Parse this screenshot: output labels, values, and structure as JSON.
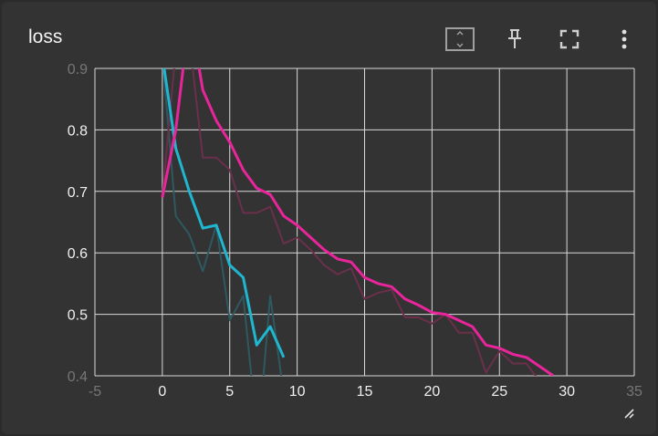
{
  "card": {
    "title": "loss",
    "icons": [
      "fit-domain-icon",
      "pin-icon",
      "fullscreen-icon",
      "more-vert-icon"
    ]
  },
  "chart_data": {
    "type": "line",
    "title": "loss",
    "xlabel": "",
    "ylabel": "",
    "xlim": [
      -5,
      35
    ],
    "ylim": [
      0.4,
      0.9
    ],
    "x_ticks": [
      -5,
      0,
      5,
      10,
      15,
      20,
      25,
      30,
      35
    ],
    "y_ticks": [
      0.4,
      0.5,
      0.6,
      0.7,
      0.8,
      0.9
    ],
    "grid": true,
    "colors": {
      "cyan": "#1fb6d0",
      "cyan_raw": "#2e5960",
      "magenta": "#e8259a",
      "magenta_raw": "#6b2f4c",
      "grid": "#d9d9d9",
      "background": "#333333"
    },
    "series": [
      {
        "color": "#1fb6d0",
        "raw_color": "#2e5960",
        "raw": [
          [
            0,
            0.92
          ],
          [
            1,
            0.66
          ],
          [
            2,
            0.63
          ],
          [
            3,
            0.57
          ],
          [
            4,
            0.645
          ],
          [
            5,
            0.49
          ],
          [
            6,
            0.53
          ],
          [
            6.6,
            0.4
          ],
          [
            7,
            0.36
          ],
          [
            7.5,
            0.4
          ],
          [
            8,
            0.53
          ],
          [
            9,
            0.37
          ]
        ],
        "smoothed": [
          [
            0,
            0.92
          ],
          [
            1,
            0.77
          ],
          [
            2,
            0.7
          ],
          [
            3,
            0.64
          ],
          [
            4,
            0.645
          ],
          [
            5,
            0.58
          ],
          [
            6,
            0.56
          ],
          [
            7,
            0.45
          ],
          [
            8,
            0.48
          ],
          [
            9,
            0.43
          ]
        ]
      },
      {
        "color": "#e8259a",
        "raw_color": "#6b2f4c",
        "raw": [
          [
            0,
            0.69
          ],
          [
            1,
            0.93
          ],
          [
            2,
            0.95
          ],
          [
            3,
            0.755
          ],
          [
            4,
            0.755
          ],
          [
            5,
            0.735
          ],
          [
            6,
            0.665
          ],
          [
            7,
            0.665
          ],
          [
            8,
            0.675
          ],
          [
            9,
            0.615
          ],
          [
            10,
            0.625
          ],
          [
            11,
            0.605
          ],
          [
            12,
            0.58
          ],
          [
            13,
            0.565
          ],
          [
            14,
            0.575
          ],
          [
            15,
            0.525
          ],
          [
            16,
            0.535
          ],
          [
            17,
            0.54
          ],
          [
            18,
            0.495
          ],
          [
            19,
            0.495
          ],
          [
            20,
            0.485
          ],
          [
            21,
            0.5
          ],
          [
            22,
            0.47
          ],
          [
            23,
            0.47
          ],
          [
            24,
            0.405
          ],
          [
            25,
            0.44
          ],
          [
            26,
            0.42
          ],
          [
            27,
            0.42
          ],
          [
            28,
            0.39
          ],
          [
            29,
            0.39
          ]
        ],
        "smoothed": [
          [
            0,
            0.69
          ],
          [
            1,
            0.8
          ],
          [
            1.6,
            0.91
          ],
          [
            2.5,
            0.93
          ],
          [
            3,
            0.865
          ],
          [
            4,
            0.815
          ],
          [
            5,
            0.78
          ],
          [
            6,
            0.735
          ],
          [
            7,
            0.705
          ],
          [
            8,
            0.695
          ],
          [
            9,
            0.66
          ],
          [
            10,
            0.645
          ],
          [
            11,
            0.625
          ],
          [
            12,
            0.605
          ],
          [
            13,
            0.59
          ],
          [
            14,
            0.585
          ],
          [
            15,
            0.56
          ],
          [
            16,
            0.55
          ],
          [
            17,
            0.545
          ],
          [
            18,
            0.525
          ],
          [
            19,
            0.515
          ],
          [
            20,
            0.503
          ],
          [
            21,
            0.5
          ],
          [
            22,
            0.49
          ],
          [
            23,
            0.48
          ],
          [
            24,
            0.45
          ],
          [
            25,
            0.445
          ],
          [
            26,
            0.435
          ],
          [
            27,
            0.43
          ],
          [
            28,
            0.415
          ],
          [
            29,
            0.4
          ]
        ]
      }
    ]
  }
}
